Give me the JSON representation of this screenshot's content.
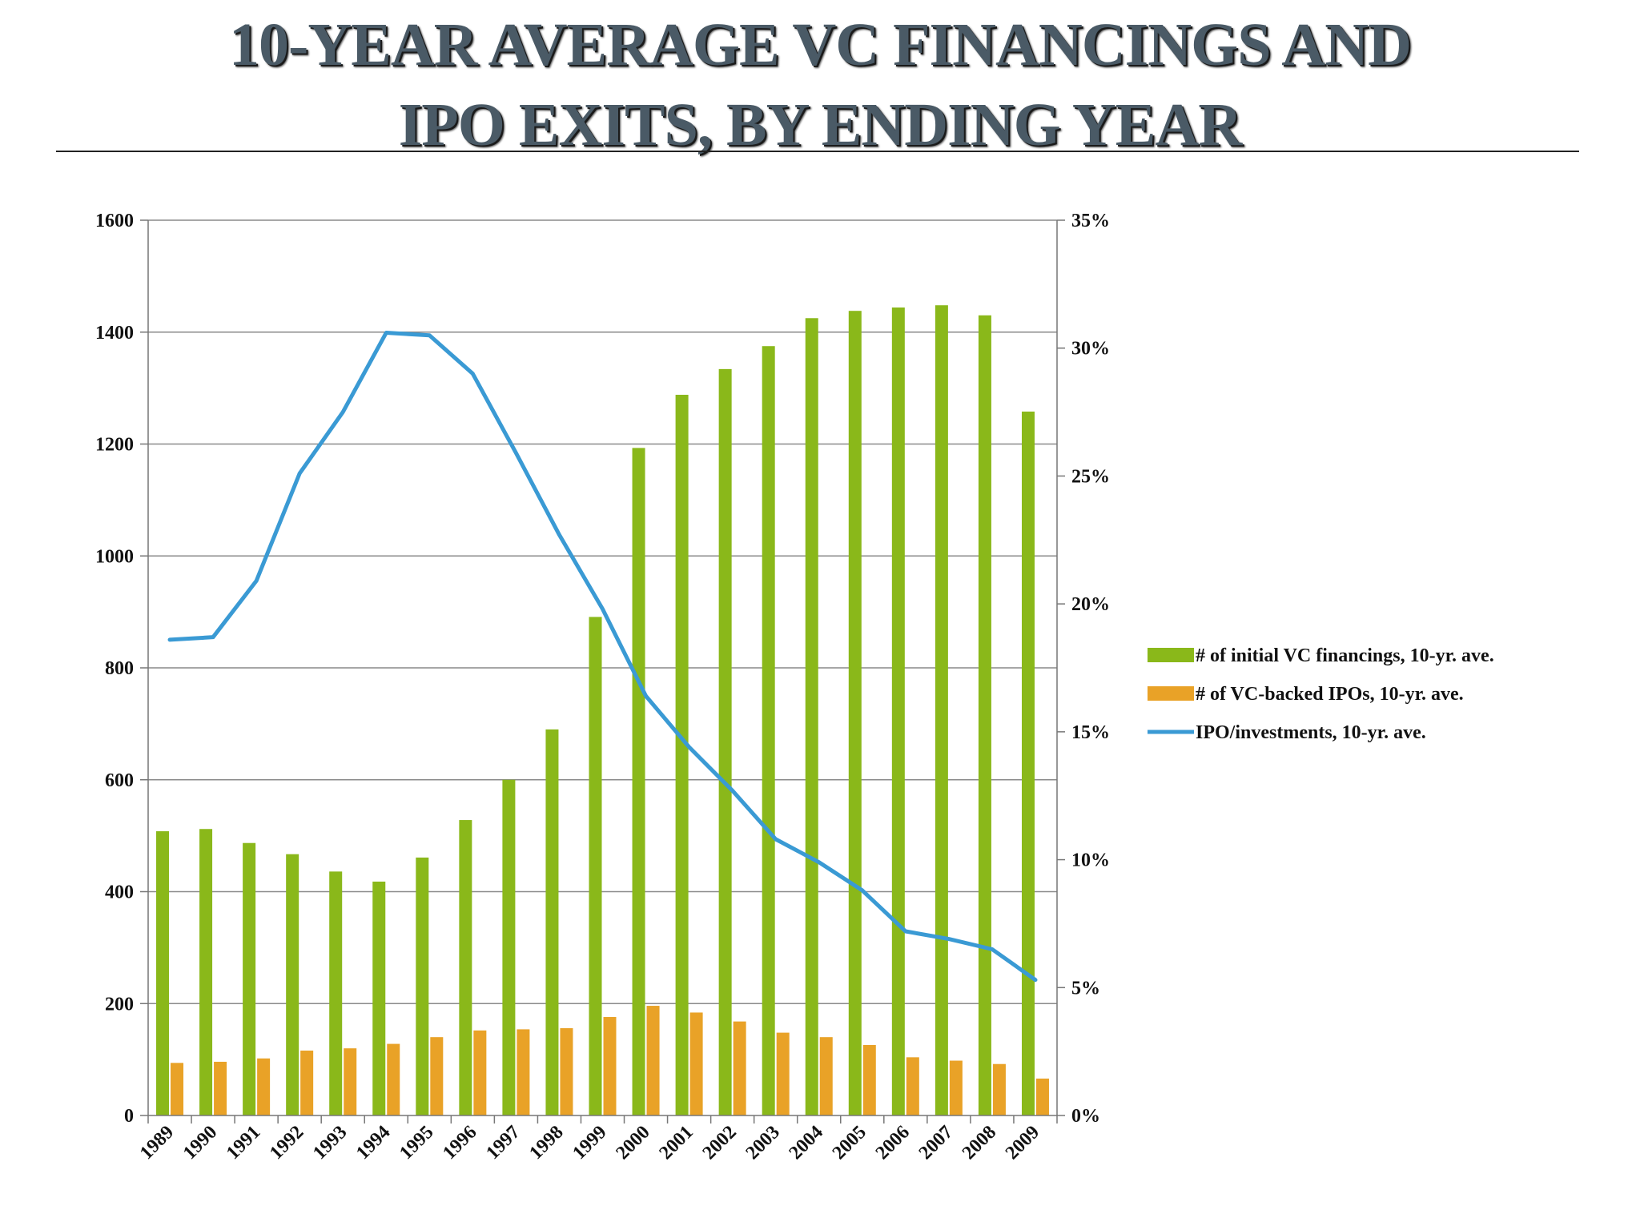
{
  "title": {
    "line1": "10-YEAR AVERAGE VC FINANCINGS AND",
    "line2": "IPO EXITS, BY ENDING YEAR"
  },
  "colors": {
    "financings": "#8ab81a",
    "ipos": "#e9a227",
    "ratio": "#3a9ad4",
    "grid": "#8a8a8a",
    "title": "#4a5a66"
  },
  "chart_data": {
    "type": "bar",
    "categories": [
      "1989",
      "1990",
      "1991",
      "1992",
      "1993",
      "1994",
      "1995",
      "1996",
      "1997",
      "1998",
      "1999",
      "2000",
      "2001",
      "2002",
      "2003",
      "2004",
      "2005",
      "2006",
      "2007",
      "2008",
      "2009"
    ],
    "series": [
      {
        "name": "# of initial VC financings, 10-yr. ave.",
        "type": "bar",
        "axis": "left",
        "values": [
          508,
          512,
          487,
          467,
          436,
          418,
          461,
          528,
          600,
          690,
          891,
          1193,
          1288,
          1334,
          1375,
          1425,
          1438,
          1444,
          1448,
          1430,
          1258
        ]
      },
      {
        "name": "# of VC-backed IPOs, 10-yr. ave.",
        "type": "bar",
        "axis": "left",
        "values": [
          94,
          96,
          102,
          116,
          120,
          128,
          140,
          152,
          154,
          156,
          176,
          196,
          184,
          168,
          148,
          140,
          126,
          104,
          98,
          92,
          66
        ]
      },
      {
        "name": "IPO/investments, 10-yr. ave.",
        "type": "line",
        "axis": "right",
        "values": [
          18.6,
          18.7,
          20.9,
          25.1,
          27.5,
          30.6,
          30.5,
          29.0,
          25.9,
          22.7,
          19.8,
          16.4,
          14.4,
          12.7,
          10.8,
          9.9,
          8.8,
          7.2,
          6.9,
          6.5,
          5.3
        ]
      }
    ],
    "y_left": {
      "min": 0,
      "max": 1600,
      "ticks": [
        "0",
        "200",
        "400",
        "600",
        "800",
        "1000",
        "1200",
        "1400",
        "1600"
      ]
    },
    "y_right": {
      "min": 0,
      "max": 35,
      "ticks": [
        "0%",
        "5%",
        "10%",
        "15%",
        "20%",
        "25%",
        "30%",
        "35%"
      ]
    },
    "grid": true,
    "legend_position": "right"
  }
}
